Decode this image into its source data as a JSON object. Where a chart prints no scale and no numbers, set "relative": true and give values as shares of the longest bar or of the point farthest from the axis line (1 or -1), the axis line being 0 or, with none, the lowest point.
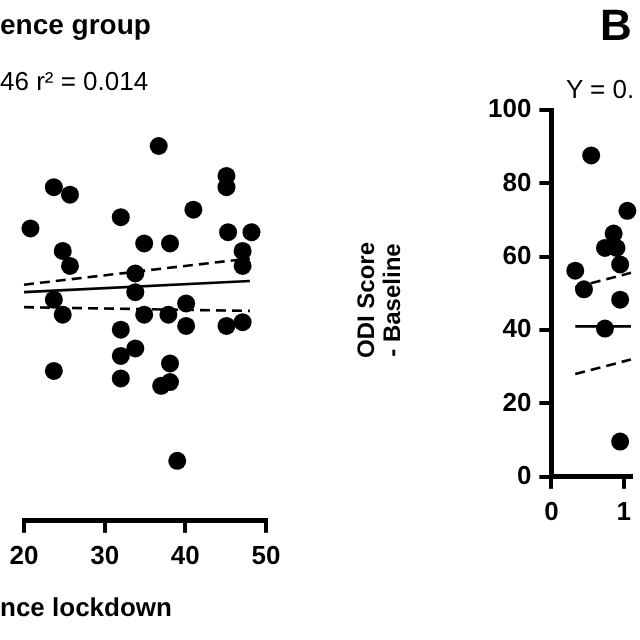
{
  "chart_data": [
    {
      "type": "scatter",
      "title": "ence group",
      "annotations": [
        "46   r² = 0.014"
      ],
      "xlabel": "nce lockdown",
      "relative": true,
      "xlim": [
        20,
        50
      ],
      "xticks": [
        20,
        30,
        40,
        50
      ],
      "grid": false,
      "legend": false,
      "tick_labels": "x",
      "series": [
        {
          "type": "scatter",
          "color": "#000000",
          "marker": "circle",
          "x": [
            36.7,
            23.7,
            25.7,
            20.8,
            32.0,
            41.0,
            45.1,
            45.1,
            45.3,
            48.2,
            24.8,
            25.7,
            34.9,
            38.1,
            47.1,
            47.1,
            33.8,
            33.8,
            23.7,
            24.8,
            34.9,
            37.9,
            40.1,
            40.1,
            32.0,
            45.1,
            47.1,
            23.7,
            32.0,
            32.0,
            33.8,
            38.1,
            38.1,
            37.0,
            39.0
          ],
          "values": [
            1.0,
            0.89,
            0.87,
            0.78,
            0.81,
            0.83,
            0.92,
            0.89,
            0.77,
            0.77,
            0.72,
            0.68,
            0.74,
            0.74,
            0.72,
            0.68,
            0.66,
            0.61,
            0.59,
            0.55,
            0.55,
            0.55,
            0.58,
            0.52,
            0.51,
            0.52,
            0.53,
            0.4,
            0.44,
            0.38,
            0.46,
            0.42,
            0.37,
            0.36,
            0.16
          ]
        },
        {
          "type": "line",
          "color": "#000000",
          "marker": "none",
          "line_style": "solid",
          "x": [
            20,
            48
          ],
          "values": [
            0.61,
            0.64
          ]
        },
        {
          "type": "line",
          "color": "#000000",
          "marker": "none",
          "line_style": "dashed",
          "x": [
            20,
            48
          ],
          "values": [
            0.63,
            0.7
          ]
        },
        {
          "type": "line",
          "color": "#000000",
          "marker": "none",
          "line_style": "dashed",
          "x": [
            20,
            48
          ],
          "values": [
            0.57,
            0.56
          ]
        }
      ]
    },
    {
      "type": "scatter",
      "title": "B",
      "annotations": [
        "Y = 0."
      ],
      "ylabel": "ODI Score\n- Baseline",
      "xlim": [
        0,
        1.1
      ],
      "xticks": [
        0,
        1
      ],
      "ylim": [
        0,
        100
      ],
      "yticks": [
        0,
        20,
        40,
        60,
        80,
        100
      ],
      "grid": false,
      "legend": false,
      "series": [
        {
          "type": "scatter",
          "color": "#000000",
          "marker": "circle",
          "x": [
            0.55,
            1.05,
            0.86,
            0.74,
            0.9,
            0.33,
            0.95,
            0.45,
            0.95,
            0.74,
            0.95
          ],
          "values": [
            87.6,
            72.5,
            66.3,
            62.4,
            62.4,
            56.2,
            57.9,
            51.1,
            48.3,
            40.4,
            9.6
          ]
        },
        {
          "type": "line",
          "color": "#000000",
          "marker": "none",
          "line_style": "solid",
          "x": [
            0.33,
            1.1
          ],
          "values": [
            41,
            41
          ]
        },
        {
          "type": "line",
          "color": "#000000",
          "marker": "none",
          "line_style": "dashed",
          "x": [
            0.33,
            1.1
          ],
          "values": [
            51.7,
            55.6
          ]
        },
        {
          "type": "line",
          "color": "#000000",
          "marker": "none",
          "line_style": "dashed",
          "x": [
            0.33,
            1.1
          ],
          "values": [
            28,
            32
          ]
        }
      ]
    }
  ]
}
